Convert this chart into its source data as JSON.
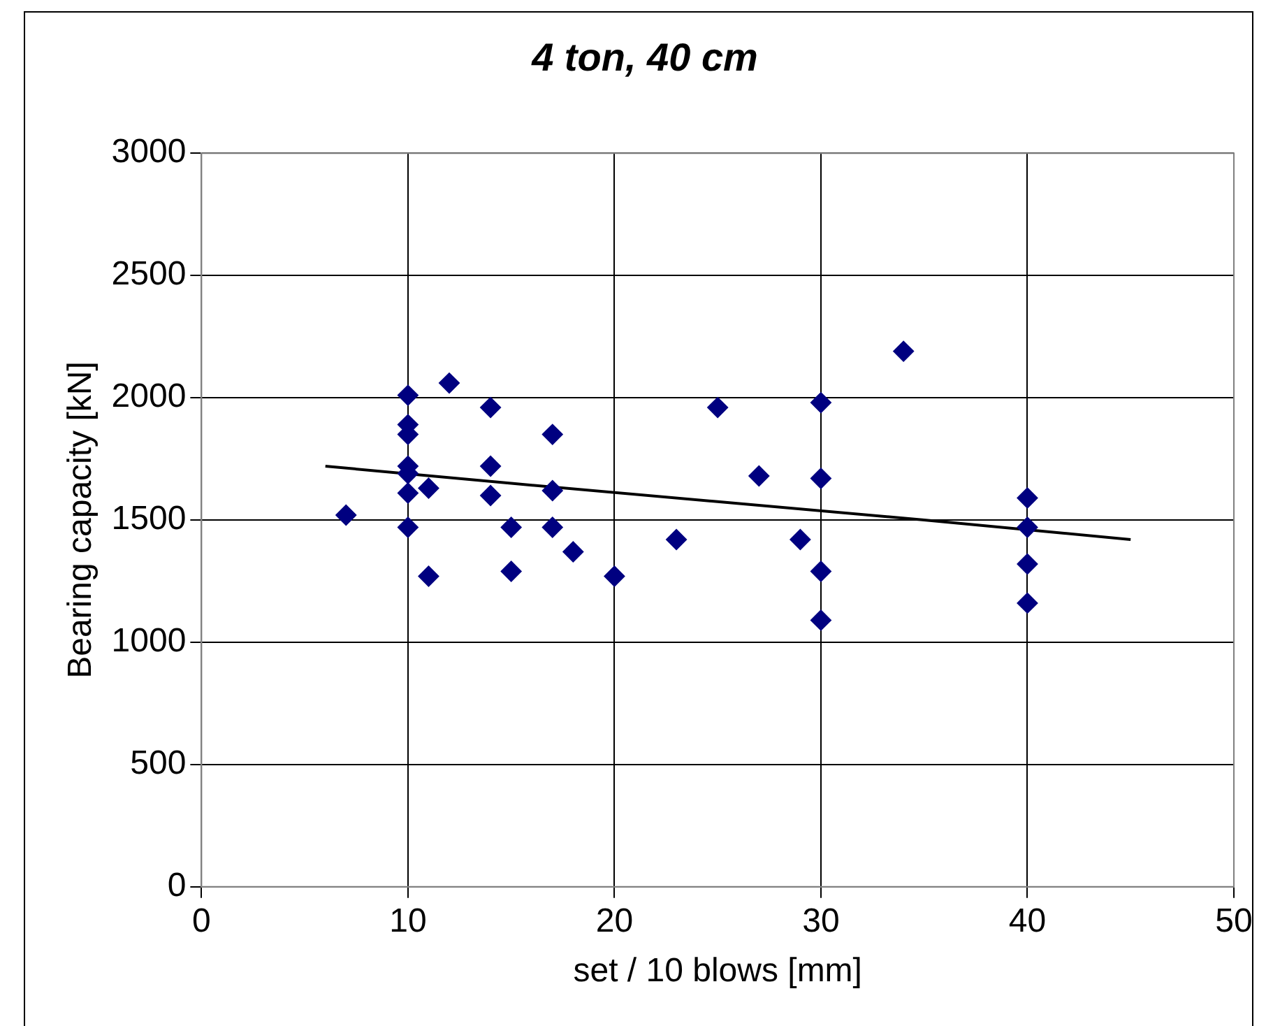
{
  "chart_data": {
    "type": "scatter",
    "title": "4 ton, 40 cm",
    "xlabel": "set / 10 blows [mm]",
    "ylabel": "Bearing capacity [kN]",
    "xlim": [
      0,
      50
    ],
    "xticks": [
      0,
      10,
      20,
      30,
      40,
      50
    ],
    "ylim": [
      0,
      3000
    ],
    "yticks": [
      0,
      500,
      1000,
      1500,
      2000,
      2500,
      3000
    ],
    "grid": true,
    "legend": false,
    "marker": "diamond",
    "series": [
      {
        "color": "#000080",
        "x": [
          7,
          10,
          10,
          10,
          10,
          10,
          10,
          10,
          11,
          11,
          12,
          14,
          14,
          14,
          15,
          15,
          17,
          17,
          17,
          18,
          20,
          23,
          25,
          27,
          29,
          30,
          30,
          30,
          30,
          34,
          40,
          40,
          40,
          40
        ],
        "values": [
          1520,
          2010,
          1890,
          1850,
          1720,
          1690,
          1610,
          1470,
          1630,
          1270,
          2060,
          1960,
          1720,
          1600,
          1470,
          1290,
          1850,
          1620,
          1470,
          1370,
          1270,
          1420,
          1960,
          1680,
          1420,
          1980,
          1670,
          1290,
          1090,
          2190,
          1590,
          1470,
          1320,
          1160
        ]
      },
      {
        "type": "line",
        "color": "#000000",
        "marker": "none",
        "x": [
          6,
          15,
          25,
          35,
          45
        ],
        "values": [
          1720,
          1650,
          1575,
          1500,
          1420
        ]
      }
    ]
  }
}
